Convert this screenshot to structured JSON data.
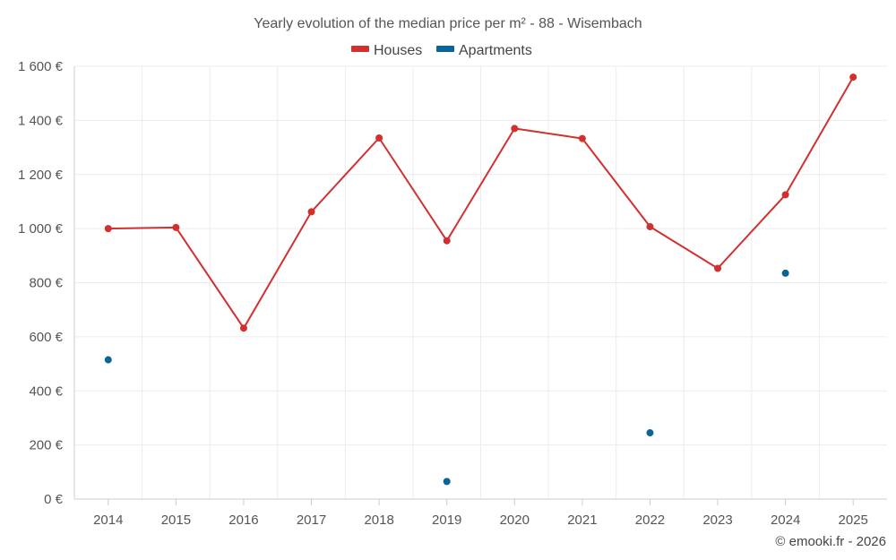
{
  "chart_data": {
    "type": "line",
    "title": "Yearly evolution of the median price per m² - 88 - Wisembach",
    "categories": [
      "2014",
      "2015",
      "2016",
      "2017",
      "2018",
      "2019",
      "2020",
      "2021",
      "2022",
      "2023",
      "2024",
      "2025"
    ],
    "series": [
      {
        "name": "Houses",
        "color": "#d32f2f",
        "mode": "line+markers",
        "values": [
          1000,
          1004,
          632,
          1062,
          1335,
          955,
          1370,
          1333,
          1007,
          853,
          1125,
          1560
        ]
      },
      {
        "name": "Apartments",
        "color": "#0a6496",
        "mode": "markers",
        "values": [
          515,
          null,
          null,
          null,
          null,
          65,
          null,
          null,
          245,
          null,
          835,
          null
        ]
      }
    ],
    "ylim": [
      0,
      1600
    ],
    "yticks": [
      0,
      200,
      400,
      600,
      800,
      1000,
      1200,
      1400,
      1600
    ],
    "ytick_labels": [
      "0 €",
      "200 €",
      "400 €",
      "600 €",
      "800 €",
      "1 000 €",
      "1 200 €",
      "1 400 €",
      "1 600 €"
    ],
    "legend_position": "top-center",
    "grid": true,
    "xlabel": "",
    "ylabel": ""
  },
  "credit": "© emooki.fr - 2026"
}
